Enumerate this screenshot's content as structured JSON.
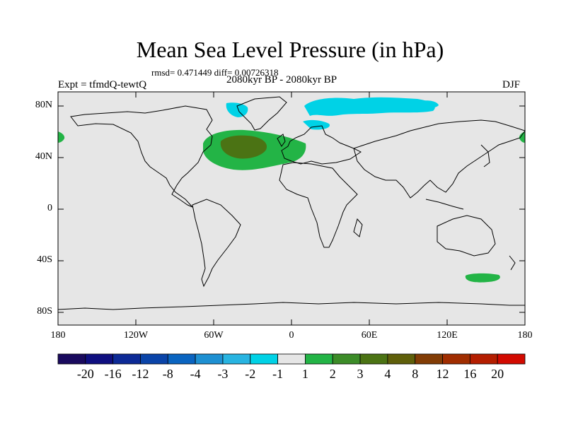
{
  "title": "Mean Sea Level Pressure (in hPa)",
  "stats_text": "rmsd= 0.471449 diff= 0.00726318",
  "period_text": "2080kyr BP - 2080kyr BP",
  "experiment_text": "Expt = tfmdQ-tewtQ",
  "season_text": "DJF",
  "y_ticks": [
    "80N",
    "40N",
    "0",
    "40S",
    "80S"
  ],
  "x_ticks": [
    "180",
    "120W",
    "60W",
    "0",
    "60E",
    "120E",
    "180"
  ],
  "colorbar": {
    "colors": [
      "#1a0a5e",
      "#0f0f80",
      "#0d2a96",
      "#0a44a8",
      "#0a64c0",
      "#1e90d2",
      "#28b4e1",
      "#00d2e6",
      "#e6e6e6",
      "#23b446",
      "#3c8c28",
      "#4b7314",
      "#5f5f0a",
      "#823c05",
      "#a02d00",
      "#b41e00",
      "#d20a00"
    ],
    "labels": [
      "-20",
      "-16",
      "-12",
      "-8",
      "-4",
      "-3",
      "-2",
      "-1",
      "1",
      "2",
      "3",
      "4",
      "8",
      "12",
      "16",
      "20"
    ]
  },
  "colors": {
    "background": "#e6e6e6",
    "positive_2": "#23b446",
    "positive_3": "#4b7314",
    "negative_1": "#00d2e6",
    "coast": "#000000"
  }
}
